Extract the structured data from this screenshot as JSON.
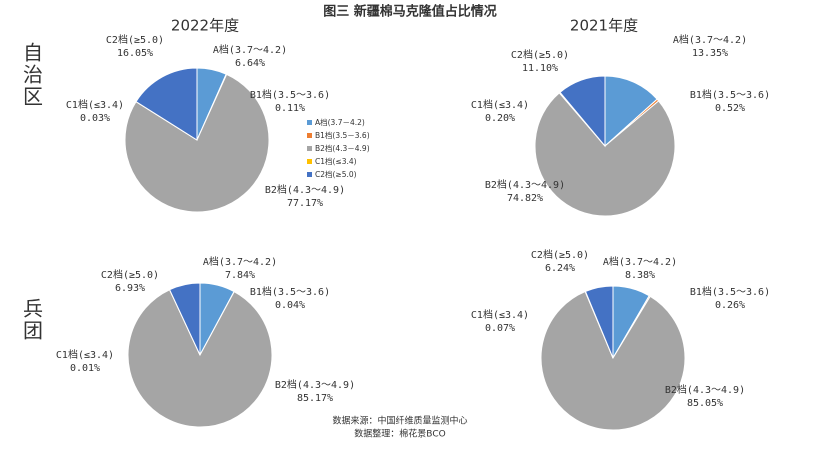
{
  "title": "图三 新疆棉马克隆值占比情况",
  "column_titles": [
    "2022年度",
    "2021年度"
  ],
  "row_titles": [
    "自治区",
    "兵团"
  ],
  "legend": [
    {
      "name": "A档(3.7－4.2)",
      "color": "#5b9bd5"
    },
    {
      "name": "B1档(3.5－3.6)",
      "color": "#ed7d31"
    },
    {
      "name": "B2档(4.3－4.9)",
      "color": "#a5a5a5"
    },
    {
      "name": "C1档(≤3.4)",
      "color": "#ffc000"
    },
    {
      "name": "C2档(≥5.0)",
      "color": "#4472c4"
    }
  ],
  "source": [
    "数据来源：中国纤维质量监测中心",
    "数据整理：棉花景BCO"
  ],
  "chart_data": [
    {
      "type": "pie",
      "categories": [
        "A档(3.7～4.2)",
        "B1档(3.5～3.6)",
        "B2档(4.3～4.9)",
        "C1档(≤3.4)",
        "C2档(≥5.0)"
      ],
      "values": [
        6.64,
        0.11,
        77.17,
        0.03,
        16.05
      ],
      "value_labels": [
        "6.64%",
        "0.11%",
        "77.17%",
        "0.03%",
        "16.05%"
      ],
      "colors": [
        "#5b9bd5",
        "#ed7d31",
        "#a5a5a5",
        "#ffc000",
        "#4472c4"
      ]
    },
    {
      "type": "pie",
      "categories": [
        "A档(3.7～4.2)",
        "B1档(3.5～3.6)",
        "B2档(4.3～4.9)",
        "C1档(≤3.4)",
        "C2档(≥5.0)"
      ],
      "values": [
        13.35,
        0.52,
        74.82,
        0.2,
        11.1
      ],
      "value_labels": [
        "13.35%",
        "0.52%",
        "74.82%",
        "0.20%",
        "11.10%"
      ],
      "colors": [
        "#5b9bd5",
        "#ed7d31",
        "#a5a5a5",
        "#ffc000",
        "#4472c4"
      ]
    },
    {
      "type": "pie",
      "categories": [
        "A档(3.7～4.2)",
        "B1档(3.5～3.6)",
        "B2档(4.3～4.9)",
        "C1档(≤3.4)",
        "C2档(≥5.0)"
      ],
      "values": [
        7.84,
        0.04,
        85.17,
        0.01,
        6.93
      ],
      "value_labels": [
        "7.84%",
        "0.04%",
        "85.17%",
        "0.01%",
        "6.93%"
      ],
      "colors": [
        "#5b9bd5",
        "#ed7d31",
        "#a5a5a5",
        "#ffc000",
        "#4472c4"
      ]
    },
    {
      "type": "pie",
      "categories": [
        "A档(3.7～4.2)",
        "B1档(3.5～3.6)",
        "B2档(4.3～4.9)",
        "C1档(≤3.4)",
        "C2档(≥5.0)"
      ],
      "values": [
        8.38,
        0.26,
        85.05,
        0.07,
        6.24
      ],
      "value_labels": [
        "8.38%",
        "0.26%",
        "85.05%",
        "0.07%",
        "6.24%"
      ],
      "colors": [
        "#5b9bd5",
        "#ed7d31",
        "#a5a5a5",
        "#ffc000",
        "#4472c4"
      ]
    }
  ]
}
